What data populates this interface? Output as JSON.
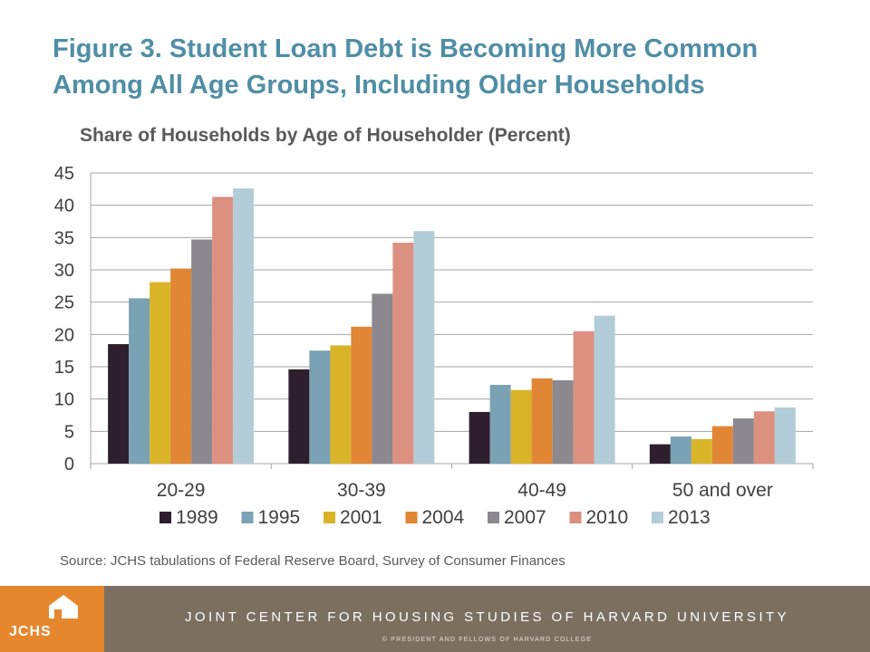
{
  "slide": {
    "title": "Figure 3. Student Loan Debt is Becoming More Common Among All Age Groups, Including Older Households",
    "source": "Source: JCHS tabulations of Federal Reserve Board, Survey of Consumer Finances"
  },
  "footer": {
    "logo_text": "JCHS",
    "logo_icon": "house-icon",
    "org_name": "JOINT CENTER FOR HOUSING STUDIES OF HARVARD UNIVERSITY",
    "copyright": "© PRESIDENT AND FELLOWS OF HARVARD COLLEGE",
    "accent_color": "#e5872d",
    "band_color": "#7b6f60"
  },
  "chart_data": {
    "type": "bar",
    "title": "Share of Households by Age of Householder (Percent)",
    "categories": [
      "20-29",
      "30-39",
      "40-49",
      "50 and over"
    ],
    "series": [
      {
        "name": "1989",
        "color": "#2e1f2e",
        "values": [
          18.5,
          14.6,
          8.0,
          3.0
        ]
      },
      {
        "name": "1995",
        "color": "#7aa2b4",
        "values": [
          25.6,
          17.5,
          12.2,
          4.2
        ]
      },
      {
        "name": "2001",
        "color": "#d9b429",
        "values": [
          28.1,
          18.3,
          11.4,
          3.8
        ]
      },
      {
        "name": "2004",
        "color": "#e08634",
        "values": [
          30.2,
          21.2,
          13.2,
          5.8
        ]
      },
      {
        "name": "2007",
        "color": "#8c8890",
        "values": [
          34.7,
          26.3,
          12.9,
          7.0
        ]
      },
      {
        "name": "2010",
        "color": "#dc9080",
        "values": [
          41.3,
          34.2,
          20.5,
          8.1
        ]
      },
      {
        "name": "2013",
        "color": "#b3cdd8",
        "values": [
          42.6,
          36.0,
          22.9,
          8.7
        ]
      }
    ],
    "ylim": [
      0,
      45
    ],
    "yticks": [
      0,
      5,
      10,
      15,
      20,
      25,
      30,
      35,
      40,
      45
    ],
    "grid": true,
    "legend_position": "bottom"
  }
}
